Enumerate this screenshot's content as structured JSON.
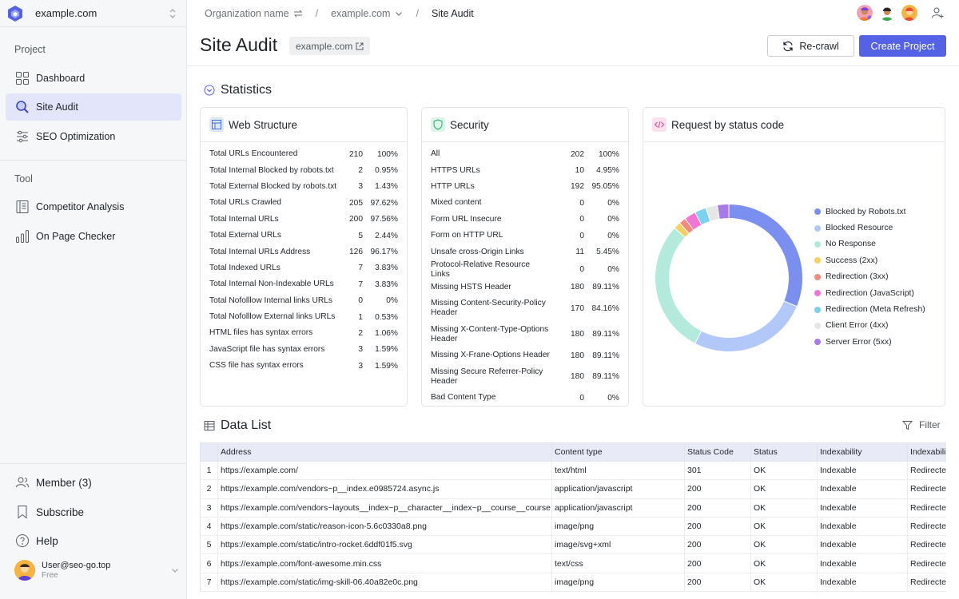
{
  "workspace": {
    "name": "example.com"
  },
  "sidebar": {
    "project_title": "Project",
    "project_items": [
      {
        "label": "Dashboard",
        "icon": "grid-icon"
      },
      {
        "label": "Site Audit",
        "icon": "search-icon",
        "active": true
      },
      {
        "label": "SEO Optimization",
        "icon": "sliders-icon"
      }
    ],
    "tool_title": "Tool",
    "tool_items": [
      {
        "label": "Competitor Analysis",
        "icon": "list-icon"
      },
      {
        "label": "On Page Checker",
        "icon": "bar-chart-icon"
      }
    ],
    "bottom_items": [
      {
        "label": "Member (3)",
        "icon": "users-icon"
      },
      {
        "label": "Subscribe",
        "icon": "bookmark-icon"
      },
      {
        "label": "Help",
        "icon": "help-icon"
      }
    ],
    "user": {
      "email": "User@seo-go.top",
      "plan": "Free"
    }
  },
  "breadcrumb": {
    "organization": "Organization name",
    "site": "example.com",
    "current": "Site Audit"
  },
  "header": {
    "title": "Site Audit",
    "domain": "example.com",
    "recrawl_label": "Re-crawl",
    "create_label": "Create Project"
  },
  "statistics": {
    "title": "Statistics",
    "web_structure": {
      "title": "Web Structure",
      "rows": [
        {
          "label": "Total URLs Encountered",
          "count": "210",
          "pct": "100%"
        },
        {
          "label": "Total Internal Blocked by robots.txt",
          "count": "2",
          "pct": "0.95%"
        },
        {
          "label": "Total External Blocked by robots.txt",
          "count": "3",
          "pct": "1.43%"
        },
        {
          "label": "Total URLs Crawled",
          "count": "205",
          "pct": "97.62%"
        },
        {
          "label": "Total Internal URLs",
          "count": "200",
          "pct": "97.56%"
        },
        {
          "label": "Total External URLs",
          "count": "5",
          "pct": "2.44%"
        },
        {
          "label": "Total Internal URLs Address",
          "count": "126",
          "pct": "96.17%"
        },
        {
          "label": "Total Indexed URLs",
          "count": "7",
          "pct": "3.83%"
        },
        {
          "label": "Total Internal Non-Indexable URLs",
          "count": "7",
          "pct": "3.83%"
        },
        {
          "label": "Total Nofolllow Internal links URLs",
          "count": "0",
          "pct": "0%"
        },
        {
          "label": "Total Nofolllow External links URLs",
          "count": "1",
          "pct": "0.53%"
        },
        {
          "label": "HTML files has syntax errors",
          "count": "2",
          "pct": "1.06%"
        },
        {
          "label": "JavaScript file has syntax errors",
          "count": "3",
          "pct": "1.59%"
        },
        {
          "label": "CSS file has syntax errors",
          "count": "3",
          "pct": "1.59%"
        }
      ]
    },
    "security": {
      "title": "Security",
      "rows": [
        {
          "label": "All",
          "count": "202",
          "pct": "100%"
        },
        {
          "label": "HTTPS URLs",
          "count": "10",
          "pct": "4.95%"
        },
        {
          "label": "HTTP URLs",
          "count": "192",
          "pct": "95.05%"
        },
        {
          "label": "Mixed content",
          "count": "0",
          "pct": "0%"
        },
        {
          "label": "Form URL Insecure",
          "count": "0",
          "pct": "0%"
        },
        {
          "label": "Form on HTTP URL",
          "count": "0",
          "pct": "0%"
        },
        {
          "label": "Unsafe cross-Origin Links",
          "count": "11",
          "pct": "5.45%"
        },
        {
          "label": "Protocol-Relative Resource Links",
          "count": "0",
          "pct": "0%"
        },
        {
          "label": "Missing HSTS Header",
          "count": "180",
          "pct": "89.11%"
        },
        {
          "label": "Missing Content-Security-Policy Header",
          "count": "170",
          "pct": "84.16%"
        },
        {
          "label": "Missing X-Content-Type-Options Header",
          "count": "180",
          "pct": "89.11%"
        },
        {
          "label": "Missing X-Frane-Options Header",
          "count": "180",
          "pct": "89.11%"
        },
        {
          "label": "Missing Secure Referrer-Policy Header",
          "count": "180",
          "pct": "89.11%"
        },
        {
          "label": "Bad Content Type",
          "count": "0",
          "pct": "0%"
        }
      ]
    },
    "status_chart": {
      "title": "Request by status code"
    }
  },
  "chart_data": {
    "type": "pie",
    "title": "Request by status code",
    "legend_position": "right",
    "categories": [
      "Blocked by Robots.txt",
      "Blocked Resource",
      "No Response",
      "Success (2xx)",
      "Redirection (3xx)",
      "Redirection (JavaScript)",
      "Redirection (Meta Refresh)",
      "Client Error (4xx)",
      "Server Error (5xx)"
    ],
    "values": [
      31,
      26,
      29,
      1.5,
      1.5,
      2.5,
      2.5,
      2.5,
      2.5
    ],
    "colors": [
      "#7b8ff0",
      "#b2c8f8",
      "#b3eadc",
      "#f7cf62",
      "#f28b7d",
      "#ef75d6",
      "#7cd1ee",
      "#e6e6e6",
      "#a77ae8"
    ]
  },
  "data_list": {
    "title": "Data List",
    "filter_label": "Filter",
    "columns": [
      "",
      "Address",
      "Content type",
      "Status Code",
      "Status",
      "Indexability",
      "Indexabili"
    ],
    "rows": [
      [
        "1",
        "https://example.com/",
        "text/html",
        "301",
        "OK",
        "Indexable",
        "Redirecte"
      ],
      [
        "2",
        "https://example.com/vendors~p__index.e0985724.async.js",
        "application/javascript",
        "200",
        "OK",
        "Indexable",
        "Redirecte"
      ],
      [
        "3",
        "https://example.com/vendors~layouts__index~p__character__index~p__course__courseId__",
        "application/javascript",
        "200",
        "OK",
        "Indexable",
        "Redirecte"
      ],
      [
        "4",
        "https://example.com/static/reason-icon-5.6c0330a8.png",
        "image/png",
        "200",
        "OK",
        "Indexable",
        "Redirecte"
      ],
      [
        "5",
        "https://example.com/static/intro-rocket.6ddf01f5.svg",
        "image/svg+xml",
        "200",
        "OK",
        "Indexable",
        "Redirecte"
      ],
      [
        "6",
        "https://example.com/font-awesome.min.css",
        "text/css",
        "200",
        "OK",
        "Indexable",
        "Redirecte"
      ],
      [
        "7",
        "https://example.com/static/img-skill-06.40a82e0c.png",
        "image/png",
        "200",
        "OK",
        "Indexable",
        "Redirecte"
      ]
    ]
  }
}
